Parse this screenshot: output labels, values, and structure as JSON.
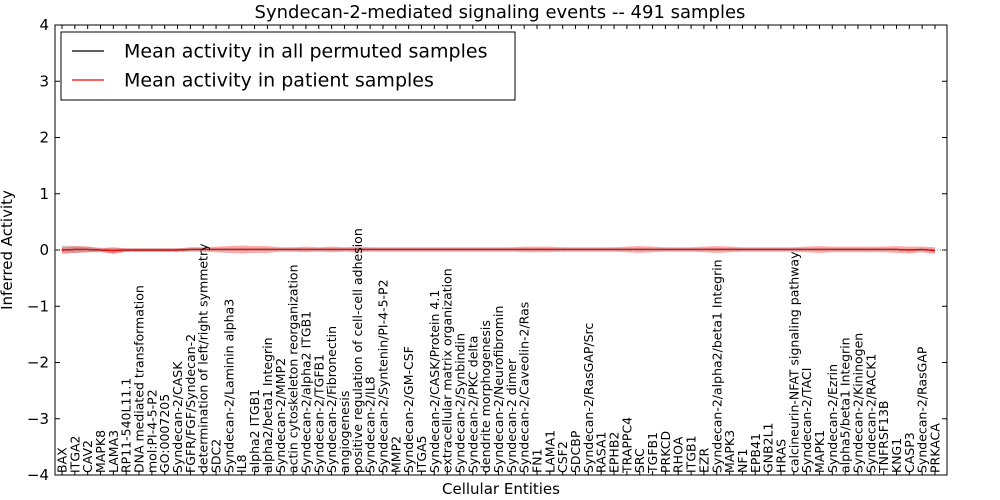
{
  "chart_data": {
    "type": "line",
    "title": "Syndecan-2-mediated signaling events -- 491 samples",
    "xlabel": "Cellular Entities",
    "ylabel": "Inferred Activity",
    "ylim": [
      -4,
      4
    ],
    "yticks": [
      "−4",
      "−3",
      "−2",
      "−1",
      "0",
      "1",
      "2",
      "3",
      "4"
    ],
    "ytick_values": [
      -4,
      -3,
      -2,
      -1,
      0,
      1,
      2,
      3,
      4
    ],
    "legend_position": "top-left",
    "legend": [
      {
        "label": "Mean activity in all permuted samples",
        "color": "#000000"
      },
      {
        "label": "Mean activity in patient samples",
        "color": "#ff0000"
      }
    ],
    "categories": [
      "BAX",
      "ITGA2",
      "CAV2",
      "MAPK8",
      "LAMA3",
      "RP11-540L11.1",
      "DNA mediated transformation",
      "mol:PI-4-5-P2",
      "GO:0007205",
      "Syndecan-2/CASK",
      "FGFR/FGF/Syndecan-2",
      "determination of left/right symmetry",
      "SDC2",
      "Syndecan-2/Laminin alpha3",
      "IL8",
      "alpha2 ITGB1",
      "alpha2/beta1 Integrin",
      "Syndecan-2/MMP2",
      "actin cytoskeleton reorganization",
      "Syndecan-2/alpha2 ITGB1",
      "Syndecan-2/TGFB1",
      "Syndecan-2/Fibronectin",
      "angiogenesis",
      "positive regulation of cell-cell adhesion",
      "Syndecan-2/IL8",
      "Syndecan-2/Syntenin/PI-4-5-P2",
      "MMP2",
      "Syndecan-2/GM-CSF",
      "ITGA5",
      "Syndecan-2/CASK/Protein 4.1",
      "extracellular matrix organization",
      "Syndecan-2/Synbindin",
      "Syndecan-2/PKC delta",
      "dendrite morphogenesis",
      "Syndecan-2/Neurofibromin",
      "Syndecan-2 dimer",
      "Syndecan-2/Caveolin-2/Ras",
      "FN1",
      "LAMA1",
      "CSF2",
      "SDCBP",
      "Syndecan-2/RasGAP/Src",
      "RASA1",
      "EPHB2",
      "TRAPPC4",
      "SRC",
      "TGFB1",
      "PRKCD",
      "RHOA",
      "ITGB1",
      "EZR",
      "Syndecan-2/alpha2/beta1 Integrin",
      "MAPK3",
      "NF1",
      "EPB41",
      "GNB2L1",
      "HRAS",
      "calcineurin-NFAT signaling pathway",
      "Syndecan-2/TACI",
      "MAPK1",
      "Syndecan-2/Ezrin",
      "alpha5/beta1 Integrin",
      "Syndecan-2/Kininogen",
      "Syndecan-2/RACK1",
      "TNFRSF13B",
      "KNG1",
      "CASP3",
      "Syndecan-2/RasGAP",
      "PRKACA"
    ],
    "series": [
      {
        "name": "Mean activity in all permuted samples",
        "color": "#000000",
        "values": [
          0.0,
          0.01,
          0.01,
          0.0,
          -0.01,
          0.0,
          0.0,
          0.0,
          0.0,
          0.0,
          0.01,
          0.01,
          0.01,
          0.01,
          0.01,
          0.01,
          0.01,
          0.01,
          0.01,
          0.01,
          0.01,
          0.01,
          0.01,
          0.01,
          0.01,
          0.01,
          0.01,
          0.01,
          0.01,
          0.01,
          0.01,
          0.01,
          0.01,
          0.01,
          0.01,
          0.01,
          0.01,
          0.01,
          0.01,
          0.01,
          0.01,
          0.01,
          0.01,
          0.01,
          0.01,
          0.01,
          0.01,
          0.01,
          0.01,
          0.01,
          0.01,
          0.01,
          0.01,
          0.01,
          0.01,
          0.01,
          0.01,
          0.01,
          0.01,
          0.01,
          0.01,
          0.01,
          0.01,
          0.01,
          0.01,
          0.01,
          0.0,
          0.01,
          -0.01
        ],
        "band": [
          0.08,
          0.06,
          0.05,
          0.04,
          0.05,
          0.03,
          0.03,
          0.03,
          0.03,
          0.03,
          0.03,
          0.02,
          0.02,
          0.02,
          0.02,
          0.02,
          0.02,
          0.02,
          0.02,
          0.02,
          0.02,
          0.02,
          0.02,
          0.02,
          0.02,
          0.02,
          0.02,
          0.02,
          0.02,
          0.02,
          0.02,
          0.02,
          0.02,
          0.02,
          0.02,
          0.02,
          0.02,
          0.02,
          0.02,
          0.02,
          0.02,
          0.02,
          0.02,
          0.02,
          0.02,
          0.02,
          0.02,
          0.02,
          0.02,
          0.02,
          0.02,
          0.02,
          0.02,
          0.02,
          0.02,
          0.02,
          0.02,
          0.02,
          0.02,
          0.02,
          0.02,
          0.02,
          0.02,
          0.02,
          0.02,
          0.02,
          0.02,
          0.02,
          0.03
        ]
      },
      {
        "name": "Mean activity in patient samples",
        "color": "#ff0000",
        "values": [
          0.0,
          0.01,
          0.01,
          0.0,
          -0.01,
          0.0,
          0.0,
          0.0,
          0.0,
          0.0,
          0.01,
          0.01,
          0.01,
          0.01,
          0.01,
          0.01,
          0.01,
          0.01,
          0.01,
          0.01,
          0.01,
          0.01,
          0.01,
          0.01,
          0.01,
          0.01,
          0.01,
          0.01,
          0.01,
          0.01,
          0.01,
          0.01,
          0.01,
          0.01,
          0.01,
          0.01,
          0.01,
          0.01,
          0.01,
          0.01,
          0.01,
          0.01,
          0.01,
          0.01,
          0.01,
          0.01,
          0.01,
          0.01,
          0.01,
          0.01,
          0.01,
          0.01,
          0.01,
          0.01,
          0.01,
          0.01,
          0.01,
          0.01,
          0.01,
          0.01,
          0.01,
          0.01,
          0.01,
          0.01,
          0.01,
          0.01,
          0.0,
          0.01,
          -0.01
        ],
        "band": [
          0.05,
          0.06,
          0.05,
          0.03,
          0.06,
          0.03,
          0.03,
          0.03,
          0.03,
          0.03,
          0.04,
          0.04,
          0.05,
          0.06,
          0.07,
          0.06,
          0.06,
          0.04,
          0.04,
          0.05,
          0.04,
          0.05,
          0.04,
          0.05,
          0.04,
          0.04,
          0.04,
          0.04,
          0.04,
          0.04,
          0.04,
          0.04,
          0.04,
          0.04,
          0.04,
          0.04,
          0.05,
          0.05,
          0.05,
          0.04,
          0.04,
          0.04,
          0.04,
          0.04,
          0.05,
          0.06,
          0.05,
          0.04,
          0.04,
          0.04,
          0.05,
          0.06,
          0.05,
          0.04,
          0.04,
          0.04,
          0.04,
          0.04,
          0.05,
          0.06,
          0.05,
          0.05,
          0.05,
          0.05,
          0.05,
          0.06,
          0.06,
          0.05,
          0.06
        ]
      }
    ]
  }
}
